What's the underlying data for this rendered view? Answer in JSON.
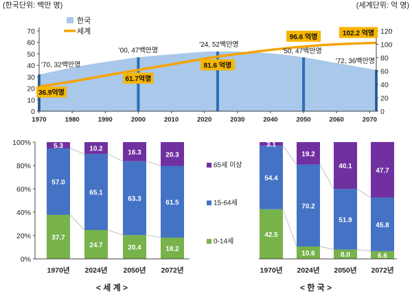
{
  "chart_data": [
    {
      "type": "area",
      "unit_left": "(한국단위: 백만 명)",
      "unit_right": "(세계단위: 억 명)",
      "x_ticks": [
        1970,
        1980,
        1990,
        2000,
        2010,
        2020,
        2030,
        2040,
        2050,
        2060,
        2070
      ],
      "xlim": [
        1970,
        2072
      ],
      "ylim_left": [
        0,
        70
      ],
      "y_ticks_left": [
        0,
        10,
        20,
        30,
        40,
        50,
        60,
        70
      ],
      "ylim_right": [
        0,
        120
      ],
      "y_ticks_right": [
        0,
        20,
        40,
        60,
        80,
        100,
        120
      ],
      "legend": [
        "한국",
        "세계"
      ],
      "series": [
        {
          "name": "한국",
          "type": "area",
          "axis": "left",
          "x": [
            1970,
            1980,
            1990,
            2000,
            2010,
            2020,
            2024,
            2030,
            2040,
            2050,
            2060,
            2072
          ],
          "values": [
            32,
            38.1,
            42.9,
            47,
            49.6,
            51.8,
            52,
            51.9,
            50.4,
            47,
            42,
            36
          ]
        },
        {
          "name": "세계",
          "type": "line",
          "axis": "right",
          "x": [
            1970,
            1980,
            1990,
            2000,
            2010,
            2020,
            2024,
            2030,
            2040,
            2050,
            2060,
            2072
          ],
          "values": [
            36.9,
            44.4,
            53.3,
            61.7,
            69.9,
            78.4,
            81.6,
            85.5,
            91.6,
            96.6,
            100.0,
            102.2
          ]
        }
      ],
      "markers": [
        1970,
        2000,
        2024,
        2050,
        2072
      ],
      "korea_annotations": [
        {
          "year": 1970,
          "text": "'70, 32백만명"
        },
        {
          "year": 2000,
          "text": "'00, 47백만명"
        },
        {
          "year": 2024,
          "text": "'24, 52백만명"
        },
        {
          "year": 2050,
          "text": "'50, 47백만명"
        },
        {
          "year": 2072,
          "text": "'72, 36백만명"
        }
      ],
      "world_labels": [
        {
          "year": 1970,
          "text": "36.9억명"
        },
        {
          "year": 2000,
          "text": "61.7억명"
        },
        {
          "year": 2024,
          "text": "81.6 억명"
        },
        {
          "year": 2050,
          "text": "96.6 억명"
        },
        {
          "year": 2072,
          "text": "102.2 억명"
        }
      ]
    },
    {
      "type": "bar",
      "stacked": true,
      "title": "< 세 계 >",
      "categories": [
        "1970년",
        "2024년",
        "2050년",
        "2072년"
      ],
      "ylim": [
        0,
        100
      ],
      "y_ticks": [
        "0%",
        "20%",
        "40%",
        "60%",
        "80%",
        "100%"
      ],
      "series": [
        {
          "name": "0-14세",
          "values": [
            37.7,
            24.7,
            20.4,
            18.2
          ]
        },
        {
          "name": "15-64세",
          "values": [
            57.0,
            65.1,
            63.3,
            61.5
          ]
        },
        {
          "name": "65세 이상",
          "values": [
            5.3,
            10.2,
            16.3,
            20.3
          ]
        }
      ],
      "legend": [
        "65세 이상",
        "15-64세",
        "0-14세"
      ]
    },
    {
      "type": "bar",
      "stacked": true,
      "title": "< 한 국 >",
      "categories": [
        "1970년",
        "2024년",
        "2050년",
        "2072년"
      ],
      "ylim": [
        0,
        100
      ],
      "series": [
        {
          "name": "0-14세",
          "values": [
            42.5,
            10.6,
            8.0,
            6.6
          ]
        },
        {
          "name": "15-64세",
          "values": [
            54.4,
            70.2,
            51.9,
            45.8
          ]
        },
        {
          "name": "65세 이상",
          "values": [
            3.1,
            19.2,
            40.1,
            47.7
          ]
        }
      ]
    }
  ],
  "colors": {
    "korea_area": "#a9c8ea",
    "world_line": "#f5a300",
    "marker": "#2e6db4",
    "label_box": "#f7b500",
    "age_0_14": "#77b24a",
    "age_15_64": "#4472c4",
    "age_65_plus": "#7030a0",
    "connector": "#bfbfbf",
    "axis": "#404040"
  }
}
